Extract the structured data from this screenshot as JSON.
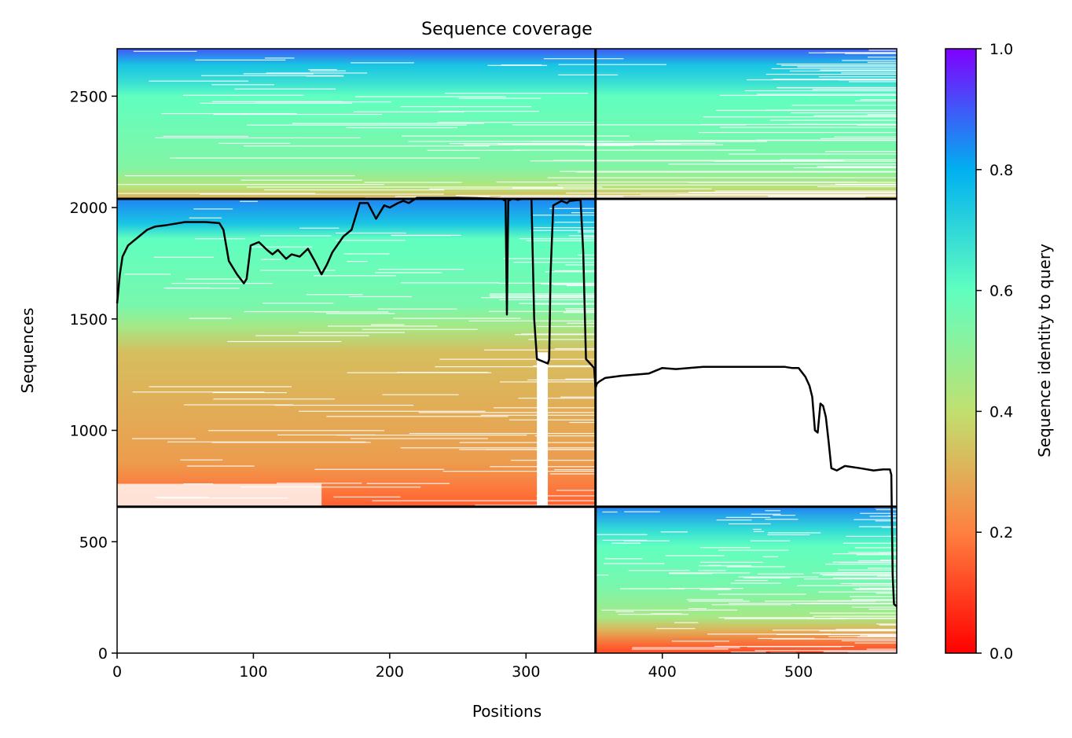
{
  "chart_data": {
    "type": "heatmap",
    "title": "Sequence coverage",
    "xlabel": "Positions",
    "ylabel": "Sequences",
    "xlim": [
      0,
      572
    ],
    "ylim": [
      0,
      2713
    ],
    "xticks": [
      0,
      100,
      200,
      300,
      400,
      500
    ],
    "yticks": [
      0,
      500,
      1000,
      1500,
      2000,
      2500
    ],
    "colorbar": {
      "label": "Sequence identity to query",
      "range": [
        0,
        1
      ],
      "ticks": [
        "0.0",
        "0.2",
        "0.4",
        "0.6",
        "0.8",
        "1.0"
      ],
      "colormap": "rainbow_r",
      "colors": [
        "#ff0000",
        "#ff8040",
        "#c0e070",
        "#60ffc0",
        "#00b0f0",
        "#8000ff"
      ]
    },
    "chain_boundaries": {
      "x": 351,
      "y": [
        657,
        2039
      ]
    },
    "blocks": [
      {
        "name": "chain-A-unpaired",
        "x": [
          0,
          351
        ],
        "y": [
          657,
          2039
        ],
        "identity_stops": [
          {
            "y": 657,
            "v": 0.15
          },
          {
            "y": 720,
            "v": 0.18
          },
          {
            "y": 860,
            "v": 0.26
          },
          {
            "y": 1350,
            "v": 0.33
          },
          {
            "y": 1470,
            "v": 0.46
          },
          {
            "y": 1560,
            "v": 0.55
          },
          {
            "y": 1860,
            "v": 0.6
          },
          {
            "y": 1930,
            "v": 0.75
          },
          {
            "y": 2039,
            "v": 0.85
          }
        ]
      },
      {
        "name": "chain-B-unpaired",
        "x": [
          351,
          572
        ],
        "y": [
          0,
          657
        ],
        "identity_stops": [
          {
            "y": 0,
            "v": 0.12
          },
          {
            "y": 30,
            "v": 0.15
          },
          {
            "y": 100,
            "v": 0.3
          },
          {
            "y": 160,
            "v": 0.45
          },
          {
            "y": 300,
            "v": 0.55
          },
          {
            "y": 480,
            "v": 0.6
          },
          {
            "y": 560,
            "v": 0.7
          },
          {
            "y": 657,
            "v": 0.85
          }
        ]
      },
      {
        "name": "paired",
        "x": [
          0,
          572
        ],
        "y": [
          2039,
          2713
        ],
        "identity_stops": [
          {
            "y": 2039,
            "v": 0.3
          },
          {
            "y": 2090,
            "v": 0.42
          },
          {
            "y": 2180,
            "v": 0.53
          },
          {
            "y": 2500,
            "v": 0.6
          },
          {
            "y": 2560,
            "v": 0.68
          },
          {
            "y": 2640,
            "v": 0.75
          },
          {
            "y": 2713,
            "v": 0.9
          }
        ]
      }
    ],
    "coverage_line": {
      "x": [
        0,
        2,
        4,
        8,
        12,
        18,
        22,
        28,
        35,
        50,
        65,
        75,
        78,
        82,
        88,
        93,
        95,
        98,
        104,
        110,
        114,
        118,
        124,
        128,
        134,
        140,
        145,
        150,
        154,
        158,
        166,
        172,
        178,
        184,
        190,
        196,
        200,
        206,
        210,
        214,
        220,
        250,
        282,
        285,
        286,
        287,
        290,
        294,
        298,
        304,
        306,
        308,
        316,
        317,
        318,
        320,
        326,
        330,
        332,
        340,
        342,
        344,
        347,
        350,
        351,
        352,
        354,
        358,
        370,
        390,
        400,
        410,
        430,
        450,
        470,
        490,
        495,
        500,
        505,
        508,
        510,
        512,
        514,
        516,
        518,
        520,
        522,
        524,
        528,
        534,
        545,
        555,
        562,
        567,
        568,
        569,
        570,
        572
      ],
      "y": [
        1570,
        1700,
        1780,
        1830,
        1850,
        1880,
        1900,
        1915,
        1920,
        1935,
        1935,
        1930,
        1900,
        1760,
        1700,
        1660,
        1680,
        1830,
        1845,
        1810,
        1790,
        1810,
        1770,
        1790,
        1780,
        1815,
        1760,
        1700,
        1745,
        1800,
        1870,
        1900,
        2020,
        2020,
        1950,
        2010,
        2000,
        2020,
        2030,
        2020,
        2044,
        2044,
        2040,
        2030,
        1520,
        2030,
        2040,
        2035,
        2040,
        2040,
        1500,
        1320,
        1300,
        1320,
        1700,
        2010,
        2030,
        2020,
        2030,
        2035,
        1800,
        1320,
        1300,
        1280,
        1190,
        1210,
        1220,
        1235,
        1245,
        1255,
        1280,
        1275,
        1285,
        1285,
        1285,
        1285,
        1280,
        1280,
        1240,
        1200,
        1150,
        1000,
        990,
        1120,
        1110,
        1060,
        950,
        830,
        820,
        840,
        830,
        820,
        825,
        825,
        800,
        350,
        220,
        210
      ]
    }
  }
}
